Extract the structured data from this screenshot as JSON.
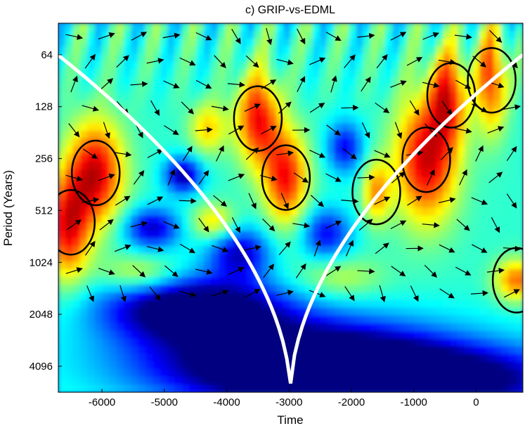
{
  "chart_data": {
    "type": "heatmap",
    "title": "c) GRIP-vs-EDML",
    "xlabel": "Time",
    "ylabel": "Period (Years)",
    "xlim": [
      -6700,
      750
    ],
    "x_ticks": [
      -6000,
      -5000,
      -4000,
      -3000,
      -2000,
      -1000,
      0
    ],
    "x_tick_labels": [
      "-6000",
      "-5000",
      "-4000",
      "-3000",
      "-2000",
      "-1000",
      "0"
    ],
    "y_scale": "log2",
    "ylim": [
      42,
      5800
    ],
    "y_reversed": true,
    "y_ticks": [
      64,
      128,
      256,
      512,
      1024,
      2048,
      4096
    ],
    "y_tick_labels": [
      "64",
      "128",
      "256",
      "512",
      "1024",
      "2048",
      "4096"
    ],
    "colormap": "jet",
    "cone_of_influence": {
      "color": "#ffffff",
      "period_at_edges": 64,
      "period_at_center": 5800,
      "center_time": -2980
    },
    "significance_contours": [
      {
        "time": -6500,
        "period": 600,
        "level": "high"
      },
      {
        "time": -6100,
        "period": 310,
        "level": "high"
      },
      {
        "time": -3500,
        "period": 150,
        "level": "high"
      },
      {
        "time": -3050,
        "period": 330,
        "level": "high"
      },
      {
        "time": -1600,
        "period": 400,
        "level": "high"
      },
      {
        "time": -800,
        "period": 260,
        "level": "high"
      },
      {
        "time": -400,
        "period": 110,
        "level": "high"
      },
      {
        "time": 250,
        "period": 90,
        "level": "high"
      },
      {
        "time": 650,
        "period": 1300,
        "level": "high"
      }
    ],
    "phase_arrows": "relative phase vectors across the time-period plane"
  }
}
